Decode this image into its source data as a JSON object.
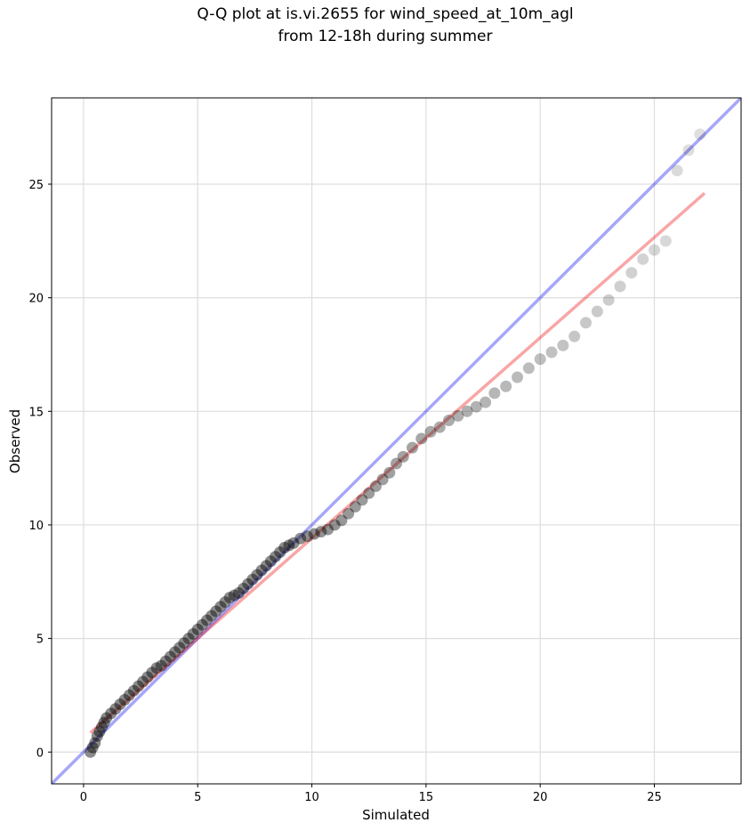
{
  "chart_data": {
    "type": "scatter",
    "title": "Q-Q plot at is.vi.2655 for wind_speed_at_10m_agl",
    "subtitle": "from 12-18h during summer",
    "xlabel": "Simulated",
    "ylabel": "Observed",
    "xlim": [
      -1.4,
      28.8
    ],
    "ylim": [
      -1.4,
      28.8
    ],
    "xticks": [
      0,
      5,
      10,
      15,
      20,
      25
    ],
    "yticks": [
      0,
      5,
      10,
      15,
      20,
      25
    ],
    "grid": true,
    "colors": {
      "points": "#000000",
      "identity_line": "#0000ee",
      "fit_line": "#ee0000",
      "grid": "#dddddd"
    },
    "reference_lines": [
      {
        "label": "1:1 line",
        "color": "#0000ee",
        "x": [
          -1.4,
          28.8
        ],
        "y": [
          -1.4,
          28.8
        ]
      },
      {
        "label": "linear fit",
        "color": "#ee0000",
        "x": [
          0.3,
          27.2
        ],
        "y": [
          0.85,
          24.6
        ]
      }
    ],
    "points": {
      "x": [
        0.3,
        0.4,
        0.5,
        0.6,
        0.7,
        0.8,
        0.9,
        1.0,
        1.2,
        1.4,
        1.6,
        1.8,
        2.0,
        2.2,
        2.4,
        2.6,
        2.8,
        3.0,
        3.2,
        3.4,
        3.6,
        3.8,
        4.0,
        4.2,
        4.4,
        4.6,
        4.8,
        5.0,
        5.2,
        5.4,
        5.6,
        5.8,
        6.0,
        6.2,
        6.4,
        6.6,
        6.8,
        7.0,
        7.2,
        7.4,
        7.6,
        7.8,
        8.0,
        8.2,
        8.4,
        8.6,
        8.8,
        9.0,
        9.2,
        9.5,
        9.8,
        10.1,
        10.4,
        10.7,
        11.0,
        11.3,
        11.6,
        11.9,
        12.2,
        12.5,
        12.8,
        13.1,
        13.4,
        13.7,
        14.0,
        14.4,
        14.8,
        15.2,
        15.6,
        16.0,
        16.4,
        16.8,
        17.2,
        17.6,
        18.0,
        18.5,
        19.0,
        19.5,
        20.0,
        20.5,
        21.0,
        21.5,
        22.0,
        22.5,
        23.0,
        23.5,
        24.0,
        24.5,
        25.0,
        25.5,
        26.0,
        26.5,
        27.0
      ],
      "y": [
        0.0,
        0.2,
        0.4,
        0.7,
        0.9,
        1.1,
        1.3,
        1.5,
        1.7,
        1.9,
        2.1,
        2.3,
        2.5,
        2.7,
        2.9,
        3.1,
        3.3,
        3.5,
        3.7,
        3.8,
        4.0,
        4.2,
        4.4,
        4.6,
        4.8,
        5.0,
        5.2,
        5.4,
        5.6,
        5.8,
        6.0,
        6.2,
        6.4,
        6.6,
        6.8,
        6.9,
        7.0,
        7.2,
        7.4,
        7.6,
        7.8,
        8.0,
        8.2,
        8.4,
        8.6,
        8.8,
        9.0,
        9.1,
        9.2,
        9.4,
        9.5,
        9.6,
        9.7,
        9.8,
        10.0,
        10.2,
        10.5,
        10.8,
        11.1,
        11.4,
        11.7,
        12.0,
        12.3,
        12.7,
        13.0,
        13.4,
        13.8,
        14.1,
        14.3,
        14.6,
        14.8,
        15.0,
        15.2,
        15.4,
        15.8,
        16.1,
        16.5,
        16.9,
        17.3,
        17.6,
        17.9,
        18.3,
        18.9,
        19.4,
        19.9,
        20.5,
        21.1,
        21.7,
        22.1,
        22.5,
        25.6,
        26.5,
        27.2
      ]
    }
  }
}
